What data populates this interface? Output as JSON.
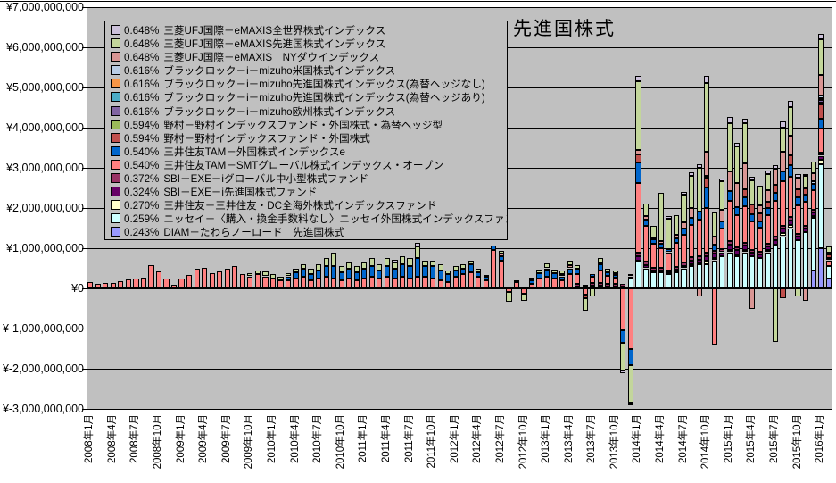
{
  "title": "先進国株式",
  "y_axis": {
    "labels": [
      "¥7,000,000,000",
      "¥6,000,000,000",
      "¥5,000,000,000",
      "¥4,000,000,000",
      "¥3,000,000,000",
      "¥2,000,000,000",
      "¥1,000,000,000",
      "¥0",
      "¥-1,000,000,000",
      "¥-2,000,000,000",
      "¥-3,000,000,000"
    ],
    "max_million": 7000,
    "min_million": -3000,
    "step_million": 1000
  },
  "x_axis": {
    "tick_labels": [
      "2008年1月",
      "2008年4月",
      "2008年7月",
      "2008年10月",
      "2009年1月",
      "2009年4月",
      "2009年7月",
      "2009年10月",
      "2010年1月",
      "2010年4月",
      "2010年7月",
      "2010年10月",
      "2011年1月",
      "2011年4月",
      "2011年7月",
      "2011年10月",
      "2012年1月",
      "2012年4月",
      "2012年7月",
      "2012年10月",
      "2013年1月",
      "2013年4月",
      "2013年7月",
      "2013年10月",
      "2014年1月",
      "2014年4月",
      "2014年7月",
      "2014年10月",
      "2015年1月",
      "2015年4月",
      "2015年7月",
      "2015年10月",
      "2016年1月"
    ]
  },
  "legend": {
    "items": [
      {
        "key": "zw",
        "pct": "0.648%",
        "label": "三菱UFJ国際－eMAXIS全世界株式インデックス"
      },
      {
        "key": "es",
        "pct": "0.648%",
        "label": "三菱UFJ国際－eMAXIS先進国株式インデックス"
      },
      {
        "key": "ny",
        "pct": "0.648%",
        "label": "三菱UFJ国際－eMAXIS　NYダウインデックス"
      },
      {
        "key": "mu",
        "pct": "0.616%",
        "label": "ブラックロック－i－mizuho米国株式インデックス"
      },
      {
        "key": "mn",
        "pct": "0.616%",
        "label": "ブラックロック－i－mizuho先進国株式インデックス(為替ヘッジなし)"
      },
      {
        "key": "ma",
        "pct": "0.616%",
        "label": "ブラックロック－i－mizuho先進国株式インデックス(為替ヘッジあり)"
      },
      {
        "key": "me",
        "pct": "0.616%",
        "label": "ブラックロック－i－mizuho欧州株式インデックス"
      },
      {
        "key": "nh",
        "pct": "0.594%",
        "label": "野村－野村インデックスファンド・外国株式・為替ヘッジ型"
      },
      {
        "key": "ng",
        "pct": "0.594%",
        "label": "野村－野村インデックスファンド・外国株式"
      },
      {
        "key": "ie",
        "pct": "0.540%",
        "label": "三井住友TAM－外国株式インデックスe"
      },
      {
        "key": "smt",
        "pct": "0.540%",
        "label": "三井住友TAM－SMTグローバル株式インデックス・オープン"
      },
      {
        "key": "xm",
        "pct": "0.372%",
        "label": "SBI－EXE－iグローバル中小型株式ファンド"
      },
      {
        "key": "xs",
        "pct": "0.324%",
        "label": "SBI－EXE－i先進国株式ファンド"
      },
      {
        "key": "dc",
        "pct": "0.270%",
        "label": "三井住友－三井住友・DC全海外株式インデックスファンド"
      },
      {
        "key": "ns",
        "pct": "0.259%",
        "label": "ニッセイ－〈購入・換金手数料なし〉ニッセイ外国株式インデックスファンド"
      },
      {
        "key": "tw",
        "pct": "0.243%",
        "label": "DIAM－たわらノーロード　先進国株式"
      }
    ]
  },
  "chart_data": {
    "type": "bar",
    "stacked": true,
    "unit": "million_yen",
    "ylim_million": [
      -3000,
      7000
    ],
    "gridlines": true,
    "plot_bg": "#C0C0C0",
    "series_bottom_to_top": [
      {
        "key": "tw",
        "color": "#9999FF"
      },
      {
        "key": "ns",
        "color": "#CCFFFF"
      },
      {
        "key": "dc",
        "color": "#FFFFCC"
      },
      {
        "key": "xs",
        "color": "#660066"
      },
      {
        "key": "xm",
        "color": "#993366"
      },
      {
        "key": "smt",
        "color": "#FF8080"
      },
      {
        "key": "ie",
        "color": "#0066CC"
      },
      {
        "key": "ng",
        "color": "#C0504D"
      },
      {
        "key": "nh",
        "color": "#9BBB59"
      },
      {
        "key": "me",
        "color": "#8064A2"
      },
      {
        "key": "ma",
        "color": "#4BACC6"
      },
      {
        "key": "mn",
        "color": "#F79646"
      },
      {
        "key": "mu",
        "color": "#B9CDE5"
      },
      {
        "key": "ny",
        "color": "#D99694"
      },
      {
        "key": "es",
        "color": "#C3D69B"
      },
      {
        "key": "zw",
        "color": "#CCC1DA"
      }
    ],
    "months": [
      {
        "m": "2008-01",
        "p": {
          "smt": 150
        }
      },
      {
        "m": "2008-02",
        "p": {
          "smt": 110
        }
      },
      {
        "m": "2008-03",
        "p": {
          "smt": 130
        }
      },
      {
        "m": "2008-04",
        "p": {
          "smt": 140
        }
      },
      {
        "m": "2008-05",
        "p": {
          "smt": 180
        }
      },
      {
        "m": "2008-06",
        "p": {
          "smt": 220
        }
      },
      {
        "m": "2008-07",
        "p": {
          "smt": 240
        }
      },
      {
        "m": "2008-08",
        "p": {
          "smt": 270
        }
      },
      {
        "m": "2008-09",
        "p": {
          "smt": 580
        }
      },
      {
        "m": "2008-10",
        "p": {
          "smt": 420
        }
      },
      {
        "m": "2008-11",
        "p": {
          "smt": 250
        }
      },
      {
        "m": "2008-12",
        "p": {
          "smt": 90
        }
      },
      {
        "m": "2009-01",
        "p": {
          "smt": 250
        }
      },
      {
        "m": "2009-02",
        "p": {
          "smt": 330
        }
      },
      {
        "m": "2009-03",
        "p": {
          "smt": 490
        }
      },
      {
        "m": "2009-04",
        "p": {
          "smt": 510
        }
      },
      {
        "m": "2009-05",
        "p": {
          "smt": 380
        }
      },
      {
        "m": "2009-06",
        "p": {
          "smt": 430
        }
      },
      {
        "m": "2009-07",
        "p": {
          "smt": 500
        }
      },
      {
        "m": "2009-08",
        "p": {
          "smt": 550
        }
      },
      {
        "m": "2009-09",
        "p": {
          "smt": 350
        }
      },
      {
        "m": "2009-10",
        "p": {
          "smt": 300,
          "es": 80
        }
      },
      {
        "m": "2009-11",
        "p": {
          "smt": 350,
          "es": 100
        }
      },
      {
        "m": "2009-12",
        "p": {
          "smt": 300,
          "es": 120
        }
      },
      {
        "m": "2010-01",
        "p": {
          "smt": 250,
          "es": 100
        }
      },
      {
        "m": "2010-02",
        "p": {
          "smt": 200,
          "es": 80
        }
      },
      {
        "m": "2010-03",
        "p": {
          "smt": 200,
          "ie": 100,
          "es": 80
        }
      },
      {
        "m": "2010-04",
        "p": {
          "smt": 250,
          "ie": 150,
          "es": 100
        }
      },
      {
        "m": "2010-05",
        "p": {
          "smt": 300,
          "ie": 200,
          "es": 100
        }
      },
      {
        "m": "2010-06",
        "p": {
          "smt": 200,
          "ie": 150,
          "es": 150
        }
      },
      {
        "m": "2010-07",
        "p": {
          "smt": 250,
          "ie": 200,
          "es": 150
        }
      },
      {
        "m": "2010-08",
        "p": {
          "smt": 300,
          "ie": 250,
          "es": 200
        }
      },
      {
        "m": "2010-09",
        "p": {
          "smt": 250,
          "ie": 300,
          "es": 350
        }
      },
      {
        "m": "2010-10",
        "p": {
          "smt": 200,
          "ie": 200,
          "es": 150
        }
      },
      {
        "m": "2010-11",
        "p": {
          "smt": 250,
          "ie": 250,
          "es": 150
        }
      },
      {
        "m": "2010-12",
        "p": {
          "smt": 200,
          "ie": 200,
          "es": 150
        }
      },
      {
        "m": "2011-01",
        "p": {
          "smt": 250,
          "ie": 250,
          "es": 150
        }
      },
      {
        "m": "2011-02",
        "p": {
          "smt": 300,
          "ie": 250,
          "es": 200
        }
      },
      {
        "m": "2011-03",
        "p": {
          "smt": 250,
          "ie": 200,
          "es": 150
        }
      },
      {
        "m": "2011-04",
        "p": {
          "smt": 300,
          "ie": 250,
          "es": 200
        }
      },
      {
        "m": "2011-05",
        "p": {
          "smt": 250,
          "ie": 250,
          "es": 150,
          "zw": 60
        }
      },
      {
        "m": "2011-06",
        "p": {
          "smt": 300,
          "ie": 300,
          "es": 200
        }
      },
      {
        "m": "2011-07",
        "p": {
          "smt": 250,
          "ie": 300,
          "es": 200
        }
      },
      {
        "m": "2011-08",
        "p": {
          "smt": 300,
          "ie": 450,
          "es": 300,
          "zw": 80
        }
      },
      {
        "m": "2011-09",
        "p": {
          "smt": 300,
          "ie": 250,
          "es": 150
        }
      },
      {
        "m": "2011-10",
        "p": {
          "smt": 250,
          "ie": 300,
          "es": 150
        }
      },
      {
        "m": "2011-11",
        "p": {
          "smt": 200,
          "ie": 250,
          "es": 150
        }
      },
      {
        "m": "2011-12",
        "p": {
          "smt": 150,
          "ie": 200,
          "es": 100
        }
      },
      {
        "m": "2012-01",
        "p": {
          "smt": 300,
          "ie": 150,
          "es": 100
        }
      },
      {
        "m": "2012-02",
        "p": {
          "smt": 350,
          "ie": 150,
          "es": 100
        }
      },
      {
        "m": "2012-03",
        "p": {
          "smt": 400,
          "ie": 200,
          "es": 100
        }
      },
      {
        "m": "2012-04",
        "p": {
          "smt": 300,
          "ie": 100,
          "es": 80
        }
      },
      {
        "m": "2012-05",
        "p": {
          "smt": 200,
          "ie": 80,
          "es": 60
        }
      },
      {
        "m": "2012-06",
        "p": {
          "smt": 950,
          "ie": 120
        }
      },
      {
        "m": "2012-07",
        "p": {
          "smt": 700,
          "ie": 100,
          "ny": 60,
          "es": 80
        }
      },
      {
        "m": "2012-08",
        "n": {
          "smt": 90,
          "es": 240
        }
      },
      {
        "m": "2012-09",
        "p": {
          "smt": 150,
          "ie": 60
        }
      },
      {
        "m": "2012-10",
        "n": {
          "smt": 130,
          "es": 190
        }
      },
      {
        "m": "2012-11",
        "p": {
          "smt": 120,
          "ie": 80,
          "es": 60
        }
      },
      {
        "m": "2012-12",
        "p": {
          "smt": 250,
          "ie": 120,
          "es": 100
        }
      },
      {
        "m": "2013-01",
        "p": {
          "smt": 300,
          "ie": 150,
          "ny": 50,
          "es": 120
        }
      },
      {
        "m": "2013-02",
        "p": {
          "smt": 250,
          "ie": 120,
          "es": 100
        }
      },
      {
        "m": "2013-03",
        "p": {
          "smt": 200,
          "ie": 100,
          "ny": 60,
          "es": 80
        }
      },
      {
        "m": "2013-04",
        "p": {
          "smt": 350,
          "ie": 150,
          "ny": 80,
          "es": 120
        }
      },
      {
        "m": "2013-05",
        "p": {
          "xs": 50,
          "xm": 60,
          "smt": 250,
          "ie": 120,
          "es": 100
        }
      },
      {
        "m": "2013-06",
        "p": {
          "xs": 40,
          "xm": 50
        },
        "n": {
          "smt": 160,
          "ng": 90,
          "es": 300
        }
      },
      {
        "m": "2013-07",
        "p": {
          "xs": 60,
          "xm": 70,
          "smt": 150,
          "ie": 80
        },
        "n": {
          "es": 200
        }
      },
      {
        "m": "2013-08",
        "p": {
          "xs": 60,
          "xm": 80,
          "smt": 300,
          "ie": 150,
          "ny": 60,
          "es": 100
        }
      },
      {
        "m": "2013-09",
        "p": {
          "xs": 50,
          "xm": 60,
          "smt": 200,
          "ie": 100,
          "es": 80
        }
      },
      {
        "m": "2013-10",
        "p": {
          "xs": 50,
          "xm": 60,
          "smt": 150,
          "ie": 80,
          "ny": 40,
          "es": 60
        }
      },
      {
        "m": "2013-11",
        "p": {
          "xs": 50,
          "xm": 60
        },
        "n": {
          "smt": 1050,
          "ie": 300,
          "es": 700,
          "zw": 60
        }
      },
      {
        "m": "2013-12",
        "p": {
          "ns": 250,
          "xs": 50,
          "xm": 60
        },
        "n": {
          "smt": 1500,
          "ie": 400,
          "es": 950,
          "zw": 60
        }
      },
      {
        "m": "2014-01",
        "p": {
          "ns": 700,
          "xs": 100,
          "xm": 80,
          "smt": 1750,
          "ie": 500,
          "ng": 200,
          "ny": 120,
          "es": 1700,
          "zw": 150
        }
      },
      {
        "m": "2014-02",
        "p": {
          "ns": 500,
          "xs": 70,
          "xm": 90,
          "smt": 900,
          "ie": 150,
          "ny": 100,
          "es": 300
        }
      },
      {
        "m": "2014-03",
        "p": {
          "ns": 400,
          "xs": 50,
          "xm": 70,
          "smt": 600,
          "ie": 100,
          "ny": 50,
          "es": 280
        }
      },
      {
        "m": "2014-04",
        "p": {
          "ns": 400,
          "xs": 50,
          "xm": 60,
          "smt": 500,
          "ie": 100,
          "ny": 60,
          "es": 1200
        }
      },
      {
        "m": "2014-05",
        "p": {
          "ns": 350,
          "xs": 50,
          "xm": 50,
          "smt": 450,
          "ie": 80,
          "es": 750,
          "zw": 60
        }
      },
      {
        "m": "2014-06",
        "p": {
          "ns": 400,
          "xs": 60,
          "xm": 70,
          "smt": 600,
          "ie": 120,
          "ny": 80,
          "es": 500
        }
      },
      {
        "m": "2014-07",
        "p": {
          "ns": 500,
          "xs": 60,
          "xm": 80,
          "smt": 700,
          "ie": 150,
          "ny": 150,
          "es": 700,
          "zw": 60
        }
      },
      {
        "m": "2014-08",
        "p": {
          "ns": 550,
          "xs": 70,
          "xm": 90,
          "smt": 800,
          "ie": 180,
          "ny": 250,
          "es": 800,
          "zw": 80,
          "dc": 60
        }
      },
      {
        "m": "2014-09",
        "p": {
          "ns": 600,
          "xs": 70,
          "xm": 90,
          "smt": 900,
          "ie": 200,
          "es": 1100,
          "zw": 80,
          "dc": 50
        },
        "n": {
          "ny": 200
        }
      },
      {
        "m": "2014-10",
        "p": {
          "ns": 600,
          "xs": 120,
          "xm": 90,
          "smt": 1100,
          "ie": 520,
          "ng": 250,
          "nh": 50,
          "ny": 600,
          "es": 1700,
          "zw": 180,
          "dc": 80
        }
      },
      {
        "m": "2014-11",
        "p": {
          "ns": 700,
          "xs": 100,
          "xm": 80,
          "ie": 150,
          "ny": 200,
          "es": 600,
          "dc": 60
        },
        "n": {
          "smt": 1400
        }
      },
      {
        "m": "2014-12",
        "p": {
          "ns": 800,
          "xs": 100,
          "xm": 80,
          "smt": 500,
          "ie": 180,
          "ny": 300,
          "es": 700,
          "zw": 80
        }
      },
      {
        "m": "2015-01",
        "p": {
          "ns": 900,
          "xs": 120,
          "xm": 90,
          "smt": 1000,
          "ie": 250,
          "ny": 500,
          "es": 1200,
          "zw": 150,
          "dc": 60
        }
      },
      {
        "m": "2015-02",
        "p": {
          "ns": 800,
          "xs": 100,
          "xm": 80,
          "smt": 800,
          "ie": 200,
          "ny": 600,
          "es": 900,
          "zw": 100,
          "dc": 50
        }
      },
      {
        "m": "2015-03",
        "p": {
          "ns": 900,
          "xs": 100,
          "xm": 80,
          "smt": 900,
          "ie": 220,
          "ng": 200,
          "ny": 650,
          "es": 1000,
          "zw": 120,
          "dc": 60
        }
      },
      {
        "m": "2015-04",
        "p": {
          "ns": 800,
          "xs": 90,
          "xm": 70,
          "smt": 700,
          "ie": 180,
          "ng": 250,
          "es": 600,
          "zw": 80
        },
        "n": {
          "ny": 500
        }
      },
      {
        "m": "2015-05",
        "p": {
          "ns": 750,
          "xs": 90,
          "xm": 70,
          "smt": 600,
          "ie": 150,
          "ng": 200,
          "ny": 200,
          "es": 500
        }
      },
      {
        "m": "2015-06",
        "p": {
          "ns": 900,
          "xs": 90,
          "xm": 70,
          "smt": 700,
          "ie": 180,
          "ng": 150,
          "ny": 300,
          "es": 400,
          "zw": 80,
          "dc": 60
        }
      },
      {
        "m": "2015-07",
        "p": {
          "ns": 1100,
          "xs": 100,
          "xm": 80,
          "smt": 900,
          "ie": 200,
          "ng": 200,
          "ny": 400,
          "zw": 80
        },
        "n": {
          "es": 1330
        }
      },
      {
        "m": "2015-08",
        "p": {
          "ns": 1300,
          "xs": 100,
          "xm": 80,
          "smt": 1100,
          "ie": 250,
          "ny": 500,
          "es": 600,
          "zw": 150,
          "dc": 80
        },
        "n": {
          "ng": 250
        }
      },
      {
        "m": "2015-09",
        "p": {
          "ns": 1500,
          "xs": 110,
          "xm": 90,
          "smt": 1000,
          "ie": 280,
          "ng": 250,
          "ny": 500,
          "es": 700,
          "zw": 150,
          "dc": 80
        }
      },
      {
        "m": "2015-10",
        "p": {
          "ns": 1200,
          "xs": 90,
          "xm": 70,
          "smt": 700,
          "ie": 200,
          "ng": 200,
          "ny": 300,
          "zw": 80
        },
        "n": {
          "es": 200
        }
      },
      {
        "m": "2015-11",
        "p": {
          "ns": 1400,
          "xs": 90,
          "xm": 70,
          "smt": 600,
          "ie": 180,
          "ng": 150,
          "es": 300,
          "zw": 60
        },
        "n": {
          "ny": 300
        }
      },
      {
        "m": "2015-12",
        "p": {
          "tw": 450,
          "ns": 1300,
          "xs": 80,
          "xm": 60,
          "smt": 500,
          "ie": 150,
          "mu": 60,
          "ny": 200,
          "es": 300,
          "dc": 60
        }
      },
      {
        "m": "2016-01",
        "p": {
          "tw": 1000,
          "ns": 2100,
          "dc": 100,
          "xs": 100,
          "xm": 80,
          "smt": 600,
          "ie": 250,
          "ng": 350,
          "nh": 50,
          "me": 50,
          "mn": 50,
          "mu": 80,
          "ny": 500,
          "es": 900,
          "zw": 120
        }
      },
      {
        "m": "2016-02",
        "p": {
          "tw": 250,
          "ns": 300,
          "smt": 150,
          "ie": 60,
          "ng": 80,
          "ny": 60,
          "es": 150
        }
      }
    ]
  }
}
